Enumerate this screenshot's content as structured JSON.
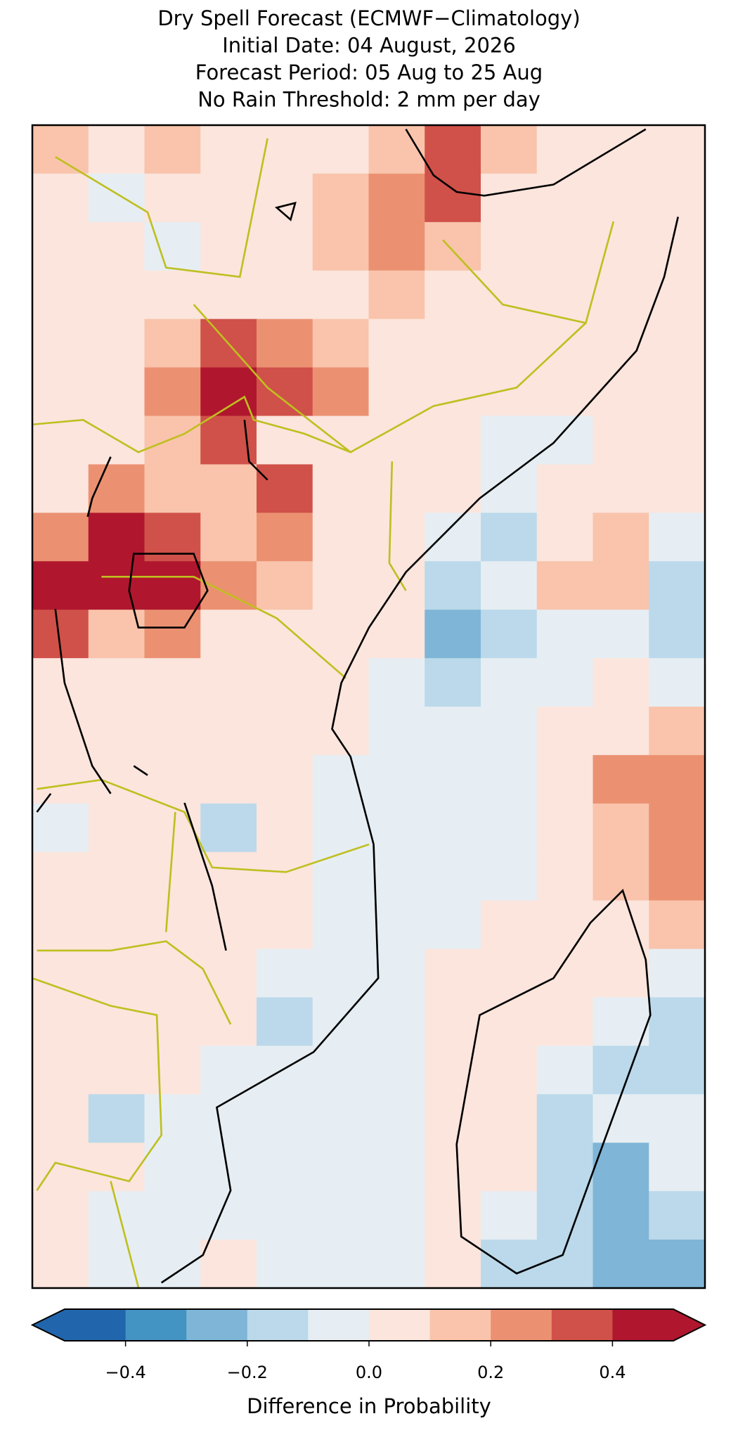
{
  "chart_data": {
    "type": "heatmap",
    "title": [
      "Dry Spell Forecast (ECMWF−Climatology)",
      "Initial Date: 04 August, 2026",
      "Forecast Period: 05 Aug to 25 Aug",
      "No Rain Threshold: 2 mm per day"
    ],
    "values": [
      [
        0.15,
        0.05,
        0.15,
        0.05,
        0.05,
        0.05,
        0.15,
        0.35,
        0.15,
        0.05,
        0.05,
        0.05
      ],
      [
        0.05,
        -0.05,
        0.05,
        0.05,
        0.05,
        0.15,
        0.25,
        0.35,
        0.05,
        0.05,
        0.05,
        0.05
      ],
      [
        0.05,
        0.05,
        -0.05,
        0.05,
        0.05,
        0.15,
        0.25,
        0.15,
        0.05,
        0.05,
        0.05,
        0.05
      ],
      [
        0.05,
        0.05,
        0.05,
        0.05,
        0.05,
        0.05,
        0.15,
        0.05,
        0.05,
        0.05,
        0.05,
        0.05
      ],
      [
        0.05,
        0.05,
        0.15,
        0.35,
        0.25,
        0.15,
        0.05,
        0.05,
        0.05,
        0.05,
        0.05,
        0.05
      ],
      [
        0.05,
        0.05,
        0.25,
        0.45,
        0.35,
        0.25,
        0.05,
        0.05,
        0.05,
        0.05,
        0.05,
        0.05
      ],
      [
        0.05,
        0.05,
        0.15,
        0.35,
        0.05,
        0.05,
        0.05,
        0.05,
        -0.05,
        -0.05,
        0.05,
        0.05
      ],
      [
        0.05,
        0.25,
        0.15,
        0.15,
        0.35,
        0.05,
        0.05,
        0.05,
        -0.05,
        0.05,
        0.05,
        0.05
      ],
      [
        0.25,
        0.45,
        0.35,
        0.15,
        0.25,
        0.05,
        0.05,
        -0.05,
        -0.15,
        0.05,
        0.15,
        -0.05
      ],
      [
        0.45,
        0.45,
        0.45,
        0.25,
        0.15,
        0.05,
        0.05,
        -0.15,
        -0.05,
        0.15,
        0.15,
        -0.15
      ],
      [
        0.35,
        0.15,
        0.25,
        0.05,
        0.05,
        0.05,
        0.05,
        -0.25,
        -0.15,
        -0.05,
        -0.05,
        -0.15
      ],
      [
        0.05,
        0.05,
        0.05,
        0.05,
        0.05,
        0.05,
        -0.05,
        -0.15,
        -0.05,
        -0.05,
        0.05,
        -0.05
      ],
      [
        0.05,
        0.05,
        0.05,
        0.05,
        0.05,
        0.05,
        -0.05,
        -0.05,
        -0.05,
        0.05,
        0.05,
        0.15
      ],
      [
        0.05,
        0.05,
        0.05,
        0.05,
        0.05,
        -0.05,
        -0.05,
        -0.05,
        -0.05,
        0.05,
        0.25,
        0.25
      ],
      [
        -0.05,
        0.05,
        0.05,
        -0.15,
        0.05,
        -0.05,
        -0.05,
        -0.05,
        -0.05,
        0.05,
        0.15,
        0.25
      ],
      [
        0.05,
        0.05,
        0.05,
        0.05,
        0.05,
        -0.05,
        -0.05,
        -0.05,
        -0.05,
        0.05,
        0.15,
        0.25
      ],
      [
        0.05,
        0.05,
        0.05,
        0.05,
        0.05,
        -0.05,
        -0.05,
        -0.05,
        0.05,
        0.05,
        0.05,
        0.15
      ],
      [
        0.05,
        0.05,
        0.05,
        0.05,
        -0.05,
        -0.05,
        -0.05,
        0.05,
        0.05,
        0.05,
        0.05,
        -0.05
      ],
      [
        0.05,
        0.05,
        0.05,
        0.05,
        -0.15,
        -0.05,
        -0.05,
        0.05,
        0.05,
        0.05,
        -0.05,
        -0.15
      ],
      [
        0.05,
        0.05,
        0.05,
        -0.05,
        -0.05,
        -0.05,
        -0.05,
        0.05,
        0.05,
        -0.05,
        -0.15,
        -0.15
      ],
      [
        0.05,
        -0.15,
        -0.05,
        -0.05,
        -0.05,
        -0.05,
        -0.05,
        0.05,
        0.05,
        -0.15,
        -0.05,
        -0.05
      ],
      [
        0.05,
        0.05,
        -0.05,
        -0.05,
        -0.05,
        -0.05,
        -0.05,
        0.05,
        0.05,
        -0.15,
        -0.25,
        -0.05
      ],
      [
        0.05,
        -0.05,
        -0.05,
        -0.05,
        -0.05,
        -0.05,
        -0.05,
        0.05,
        -0.05,
        -0.15,
        -0.25,
        -0.15
      ],
      [
        0.05,
        -0.05,
        -0.05,
        0.05,
        -0.05,
        -0.05,
        -0.05,
        0.05,
        -0.15,
        -0.15,
        -0.25,
        -0.25
      ]
    ],
    "colorbar": {
      "label": "Difference in Probability",
      "bounds": [
        -0.5,
        -0.4,
        -0.3,
        -0.2,
        -0.1,
        0,
        0.1,
        0.2,
        0.3,
        0.4,
        0.5
      ],
      "colors": [
        "#2166ac",
        "#4393c3",
        "#7fb5d7",
        "#bbd9ea",
        "#e6eef3",
        "#fbe5dd",
        "#f9c4ab",
        "#eb9172",
        "#d05149",
        "#b0172e"
      ],
      "ticks": [
        {
          "value": -0.4,
          "label": "−0.4"
        },
        {
          "value": -0.2,
          "label": "−0.2"
        },
        {
          "value": 0,
          "label": "0.0"
        },
        0.2,
        0.4
      ],
      "extend": "both"
    }
  }
}
